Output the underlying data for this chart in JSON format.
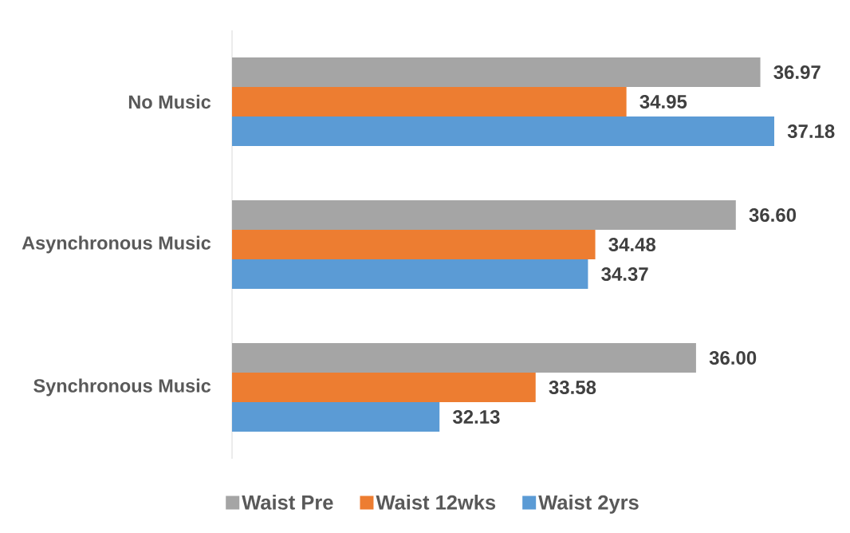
{
  "chart_data": {
    "type": "bar",
    "orientation": "horizontal",
    "categories": [
      "No Music",
      "Asynchronous Music",
      "Synchronous Music"
    ],
    "series": [
      {
        "name": "Waist Pre",
        "color": "#a5a5a5",
        "values": [
          36.97,
          36.6,
          36.0
        ],
        "value_labels": [
          "36.97",
          "36.60",
          "36.00"
        ]
      },
      {
        "name": "Waist 12wks",
        "color": "#ed7d31",
        "values": [
          34.95,
          34.48,
          33.58
        ],
        "value_labels": [
          "34.95",
          "34.48",
          "33.58"
        ]
      },
      {
        "name": "Waist 2yrs",
        "color": "#5b9bd5",
        "values": [
          37.18,
          34.37,
          32.13
        ],
        "value_labels": [
          "37.18",
          "34.37",
          "32.13"
        ]
      }
    ],
    "xlim": [
      29,
      37.18
    ],
    "tick_labels": "y",
    "legend": "bottom"
  }
}
